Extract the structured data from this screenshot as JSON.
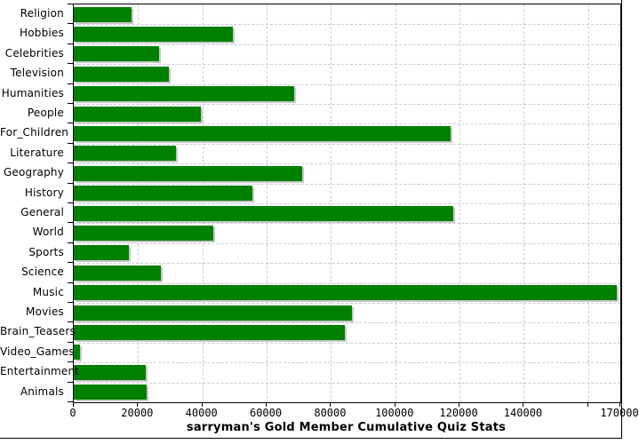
{
  "chart_data": {
    "type": "bar",
    "orientation": "horizontal",
    "title": "sarryman's Gold Member Cumulative Quiz Stats",
    "xlabel": "sarryman's Gold Member Cumulative Quiz Stats",
    "ylabel": "",
    "categories": [
      "Religion",
      "Hobbies",
      "Celebrities",
      "Television",
      "Humanities",
      "People",
      "For_Children",
      "Literature",
      "Geography",
      "History",
      "General",
      "World",
      "Sports",
      "Science",
      "Music",
      "Movies",
      "Brain_Teasers",
      "Video_Games",
      "Entertainment",
      "Animals"
    ],
    "values": [
      17900,
      49400,
      26500,
      29700,
      68500,
      39500,
      117100,
      31800,
      71000,
      55500,
      118000,
      43300,
      17200,
      27200,
      168900,
      86500,
      84300,
      1800,
      22500,
      22600
    ],
    "xlim": [
      0,
      170000
    ],
    "xticks": [
      0,
      20000,
      40000,
      60000,
      80000,
      100000,
      120000,
      140000,
      160000,
      170000
    ],
    "xtick_labels": [
      "0",
      "20000",
      "40000",
      "60000",
      "80000",
      "100000",
      "120000",
      "140000",
      "",
      "170000"
    ],
    "grid": "both",
    "legend": "none",
    "bar_color": "#008000",
    "bar_shadow_color": "#c8c8c8",
    "gridline_color": "#c9cdd4",
    "axis_color": "#000000"
  }
}
